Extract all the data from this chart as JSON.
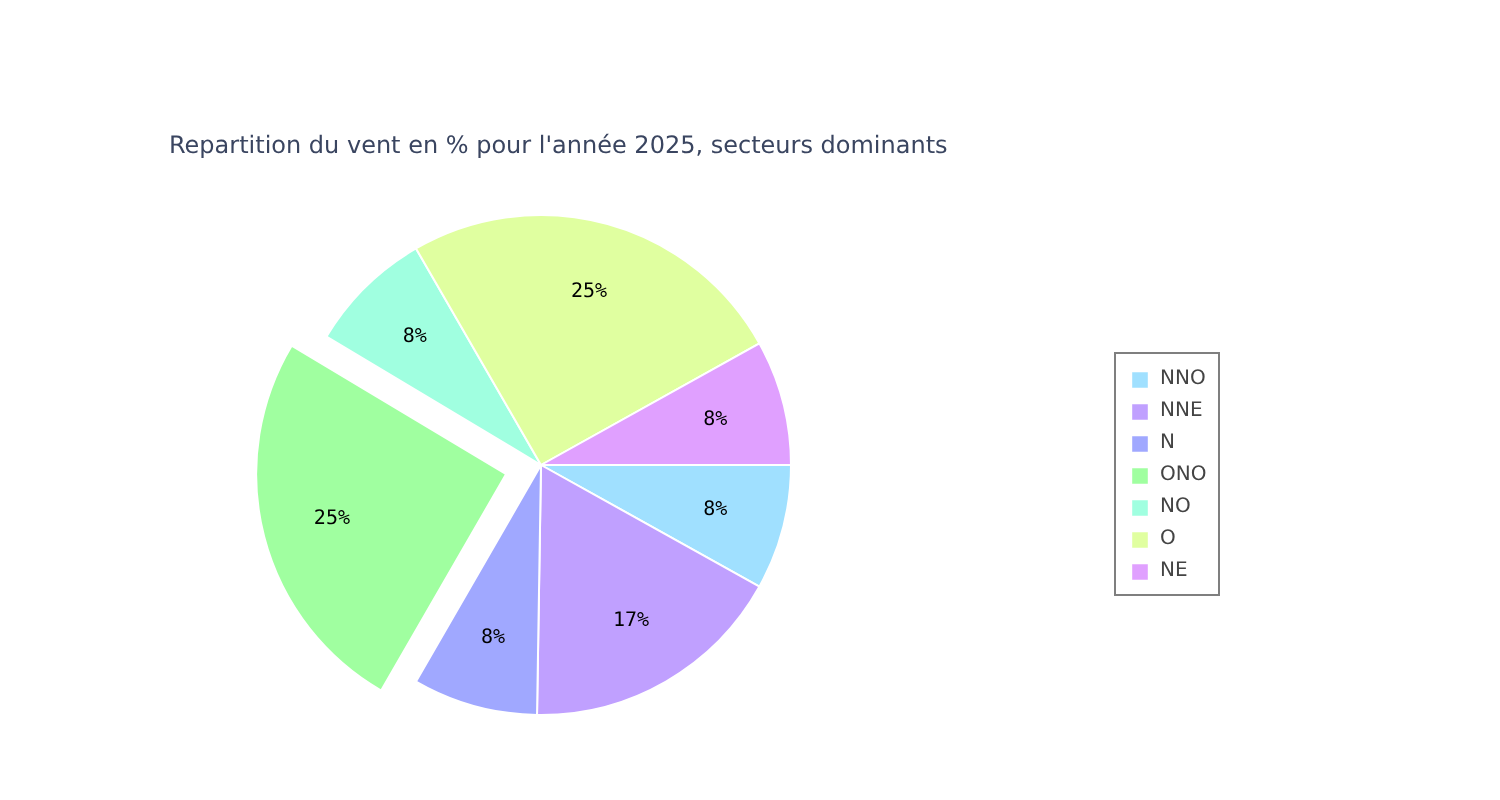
{
  "chart_data": {
    "type": "pie",
    "title": "Repartition du vent en % pour l'année 2025, secteurs dominants",
    "categories": [
      "NNO",
      "NNE",
      "N",
      "ONO",
      "NO",
      "O",
      "NE"
    ],
    "values": [
      8,
      17,
      8,
      25,
      8,
      25,
      8
    ],
    "colors": [
      "#a0e0ff",
      "#c0a0ff",
      "#a0a8ff",
      "#a0ffa0",
      "#a0ffe0",
      "#e0ffa0",
      "#e0a0ff"
    ],
    "value_labels": [
      "8%",
      "17%",
      "8%",
      "25%",
      "8%",
      "25%",
      "8%"
    ],
    "legend": "right"
  }
}
